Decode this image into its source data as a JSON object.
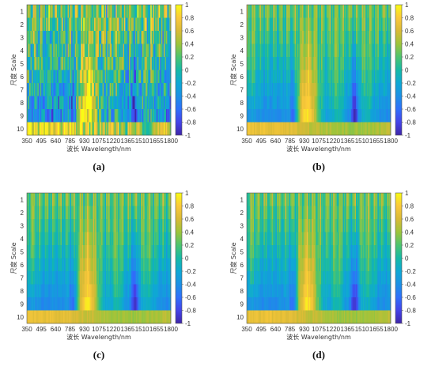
{
  "chart_data": [
    {
      "type": "heatmap",
      "panel_label": "(a)",
      "xlabel": "波长 Wavelength/nm",
      "ylabel": "尺度 Scale",
      "x_ticks": [
        "350",
        "495",
        "640",
        "785",
        "930",
        "1075",
        "1220",
        "1365",
        "1510",
        "1655",
        "1800"
      ],
      "y_ticks": [
        "1",
        "2",
        "3",
        "4",
        "5",
        "6",
        "7",
        "8",
        "9",
        "10"
      ],
      "xlim": [
        350,
        1800
      ],
      "ylim": [
        0.5,
        10.5
      ],
      "colorbar": {
        "ticks": [
          "1",
          "0.8",
          "0.6",
          "0.4",
          "0.2",
          "0",
          "-0.2",
          "-0.4",
          "-0.6",
          "-0.8",
          "-1"
        ],
        "range": [
          -1,
          1
        ]
      },
      "noise": 0.45
    },
    {
      "type": "heatmap",
      "panel_label": "(b)",
      "xlabel": "波长 Wavelength/nm",
      "ylabel": "尺度 Scale",
      "x_ticks": [
        "350",
        "495",
        "640",
        "785",
        "930",
        "1075",
        "1220",
        "1365",
        "1510",
        "1655",
        "1800"
      ],
      "y_ticks": [
        "1",
        "2",
        "3",
        "4",
        "5",
        "6",
        "7",
        "8",
        "9",
        "10"
      ],
      "xlim": [
        350,
        1800
      ],
      "ylim": [
        0.5,
        10.5
      ],
      "colorbar": {
        "ticks": [
          "1",
          "0.8",
          "0.6",
          "0.4",
          "0.2",
          "0",
          "-0.2",
          "-0.4",
          "-0.6",
          "-0.8",
          "-1"
        ],
        "range": [
          -1,
          1
        ]
      },
      "noise": 0.08
    },
    {
      "type": "heatmap",
      "panel_label": "(c)",
      "xlabel": "波长 Wavelength/nm",
      "ylabel": "尺度 Scale",
      "x_ticks": [
        "350",
        "495",
        "640",
        "785",
        "930",
        "1075",
        "1220",
        "1365",
        "1510",
        "1655",
        "1800"
      ],
      "y_ticks": [
        "1",
        "2",
        "3",
        "4",
        "5",
        "6",
        "7",
        "8",
        "9",
        "10"
      ],
      "xlim": [
        350,
        1800
      ],
      "ylim": [
        0.5,
        10.5
      ],
      "colorbar": {
        "ticks": [
          "1",
          "0.8",
          "0.6",
          "0.4",
          "0.2",
          "0",
          "-0.2",
          "-0.4",
          "-0.6",
          "-0.8",
          "-1"
        ],
        "range": [
          -1,
          1
        ]
      },
      "noise": 0.06
    },
    {
      "type": "heatmap",
      "panel_label": "(d)",
      "xlabel": "波长 Wavelength/nm",
      "ylabel": "尺度 Scale",
      "x_ticks": [
        "350",
        "495",
        "640",
        "785",
        "930",
        "1075",
        "1220",
        "1365",
        "1510",
        "1655",
        "1800"
      ],
      "y_ticks": [
        "1",
        "2",
        "3",
        "4",
        "5",
        "6",
        "7",
        "8",
        "9",
        "10"
      ],
      "xlim": [
        350,
        1800
      ],
      "ylim": [
        0.5,
        10.5
      ],
      "colorbar": {
        "ticks": [
          "1",
          "0.8",
          "0.6",
          "0.4",
          "0.2",
          "0",
          "-0.2",
          "-0.4",
          "-0.6",
          "-0.8",
          "-1"
        ],
        "range": [
          -1,
          1
        ]
      },
      "noise": 0.07
    }
  ]
}
